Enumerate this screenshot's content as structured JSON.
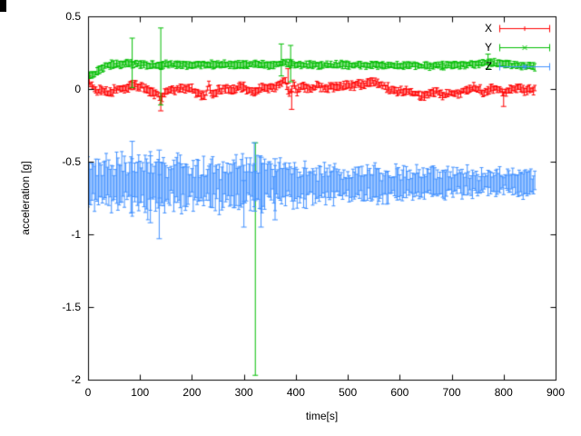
{
  "figure": {
    "background": "#ffffff",
    "border_color": "#000000",
    "text_color": "#000000"
  },
  "chart_data": {
    "type": "scatter",
    "style": "points-with-errorbars",
    "title": "",
    "xlabel": "time[s]",
    "ylabel": "acceleration [g]",
    "xlim": [
      0,
      900
    ],
    "ylim": [
      -2,
      0.5
    ],
    "xticks": [
      0,
      100,
      200,
      300,
      400,
      500,
      600,
      700,
      800,
      900
    ],
    "yticks": [
      -2,
      -1.5,
      -1,
      -0.5,
      0,
      0.5
    ],
    "grid": false,
    "legend_position": "top-right-inside",
    "noise_seed": 1234,
    "sample_step_s": 2.5,
    "t_end_s": 860,
    "series": [
      {
        "name": "X",
        "color": "#ff0000",
        "marker": "plus",
        "baseline_anchors": [
          [
            0,
            0.06
          ],
          [
            8,
            0.03
          ],
          [
            15,
            -0.02
          ],
          [
            25,
            -0.01
          ],
          [
            40,
            -0.03
          ],
          [
            55,
            0
          ],
          [
            70,
            0
          ],
          [
            85,
            0.03
          ],
          [
            100,
            0.02
          ],
          [
            115,
            -0.01
          ],
          [
            130,
            -0.03
          ],
          [
            140,
            -0.07
          ],
          [
            148,
            -0.02
          ],
          [
            160,
            -0.01
          ],
          [
            175,
            0
          ],
          [
            190,
            0.01
          ],
          [
            205,
            -0.01
          ],
          [
            215,
            -0.04
          ],
          [
            225,
            -0.05
          ],
          [
            232,
            0.03
          ],
          [
            240,
            -0.04
          ],
          [
            250,
            -0.01
          ],
          [
            265,
            0.01
          ],
          [
            280,
            -0.01
          ],
          [
            295,
            0.02
          ],
          [
            310,
            -0.02
          ],
          [
            325,
            -0.01
          ],
          [
            340,
            0.01
          ],
          [
            355,
            0.01
          ],
          [
            370,
            0.03
          ],
          [
            380,
            0.06
          ],
          [
            388,
            -0.05
          ],
          [
            395,
            0.05
          ],
          [
            402,
            -0.02
          ],
          [
            410,
            0.02
          ],
          [
            425,
            0
          ],
          [
            440,
            0.02
          ],
          [
            455,
            0.01
          ],
          [
            470,
            0.01
          ],
          [
            485,
            0.02
          ],
          [
            500,
            0.02
          ],
          [
            515,
            0.03
          ],
          [
            530,
            0.03
          ],
          [
            545,
            0.05
          ],
          [
            555,
            0.05
          ],
          [
            565,
            0.03
          ],
          [
            580,
            0
          ],
          [
            595,
            -0.02
          ],
          [
            610,
            -0.01
          ],
          [
            625,
            -0.03
          ],
          [
            640,
            -0.05
          ],
          [
            655,
            -0.04
          ],
          [
            670,
            -0.02
          ],
          [
            685,
            -0.04
          ],
          [
            700,
            -0.02
          ],
          [
            715,
            -0.03
          ],
          [
            730,
            0
          ],
          [
            745,
            0.01
          ],
          [
            760,
            -0.02
          ],
          [
            775,
            0
          ],
          [
            790,
            0.01
          ],
          [
            800,
            -0.03
          ],
          [
            810,
            0
          ],
          [
            825,
            0.01
          ],
          [
            840,
            -0.01
          ],
          [
            860,
            0
          ]
        ],
        "noise_anchors": [
          [
            0,
            0.013
          ],
          [
            860,
            0.013
          ]
        ],
        "errorbar_anchors": [
          [
            0,
            0.02
          ],
          [
            860,
            0.02
          ]
        ],
        "outliers": [
          [
            140,
            -0.08,
            0.07,
            0.05
          ],
          [
            385,
            0.09,
            0.05,
            0.05
          ],
          [
            392,
            -0.08,
            0.06,
            0.06
          ],
          [
            800,
            -0.06,
            0.06,
            0.04
          ]
        ]
      },
      {
        "name": "Y",
        "color": "#00bd00",
        "marker": "cross",
        "baseline_anchors": [
          [
            0,
            0.1
          ],
          [
            12,
            0.1
          ],
          [
            20,
            0.13
          ],
          [
            35,
            0.16
          ],
          [
            50,
            0.17
          ],
          [
            80,
            0.175
          ],
          [
            120,
            0.165
          ],
          [
            160,
            0.17
          ],
          [
            200,
            0.165
          ],
          [
            240,
            0.17
          ],
          [
            280,
            0.165
          ],
          [
            320,
            0.17
          ],
          [
            355,
            0.165
          ],
          [
            375,
            0.18
          ],
          [
            395,
            0.17
          ],
          [
            420,
            0.165
          ],
          [
            460,
            0.165
          ],
          [
            500,
            0.17
          ],
          [
            540,
            0.165
          ],
          [
            580,
            0.16
          ],
          [
            620,
            0.165
          ],
          [
            660,
            0.16
          ],
          [
            700,
            0.165
          ],
          [
            740,
            0.17
          ],
          [
            770,
            0.185
          ],
          [
            790,
            0.175
          ],
          [
            815,
            0.165
          ],
          [
            835,
            0.16
          ],
          [
            860,
            0.155
          ]
        ],
        "noise_anchors": [
          [
            0,
            0.008
          ],
          [
            860,
            0.008
          ]
        ],
        "errorbar_anchors": [
          [
            0,
            0.018
          ],
          [
            860,
            0.018
          ]
        ],
        "outliers": [
          [
            85,
            0.18,
            0.17,
            0.17
          ],
          [
            140,
            0.15,
            0.26,
            0.27
          ],
          [
            322,
            -1.3,
            0.67,
            0.93
          ],
          [
            372,
            0.19,
            0.1,
            0.12
          ],
          [
            390,
            0.17,
            0.12,
            0.13
          ],
          [
            770,
            0.19,
            0.05,
            0.05
          ]
        ]
      },
      {
        "name": "Z",
        "color": "#4090ff",
        "marker": "star",
        "baseline_anchors": [
          [
            0,
            -0.64
          ],
          [
            20,
            -0.66
          ],
          [
            50,
            -0.65
          ],
          [
            80,
            -0.64
          ],
          [
            110,
            -0.66
          ],
          [
            140,
            -0.67
          ],
          [
            170,
            -0.65
          ],
          [
            200,
            -0.66
          ],
          [
            230,
            -0.64
          ],
          [
            260,
            -0.66
          ],
          [
            290,
            -0.65
          ],
          [
            320,
            -0.64
          ],
          [
            350,
            -0.66
          ],
          [
            380,
            -0.65
          ],
          [
            420,
            -0.66
          ],
          [
            460,
            -0.65
          ],
          [
            500,
            -0.66
          ],
          [
            540,
            -0.65
          ],
          [
            580,
            -0.66
          ],
          [
            620,
            -0.65
          ],
          [
            660,
            -0.65
          ],
          [
            700,
            -0.64
          ],
          [
            740,
            -0.65
          ],
          [
            780,
            -0.64
          ],
          [
            820,
            -0.65
          ],
          [
            860,
            -0.65
          ]
        ],
        "noise_anchors": [
          [
            0,
            0.04
          ],
          [
            150,
            0.045
          ],
          [
            300,
            0.04
          ],
          [
            450,
            0.035
          ],
          [
            600,
            0.03
          ],
          [
            860,
            0.025
          ]
        ],
        "errorbar_anchors": [
          [
            0,
            0.13
          ],
          [
            100,
            0.15
          ],
          [
            160,
            0.13
          ],
          [
            250,
            0.12
          ],
          [
            330,
            0.13
          ],
          [
            400,
            0.1
          ],
          [
            500,
            0.09
          ],
          [
            600,
            0.08
          ],
          [
            700,
            0.075
          ],
          [
            860,
            0.06
          ]
        ],
        "outliers": [
          [
            85,
            -0.6,
            0.25,
            0.24
          ],
          [
            120,
            -0.68,
            0.24,
            0.22
          ],
          [
            137,
            -0.7,
            0.33,
            0.28
          ],
          [
            300,
            -0.75,
            0.2,
            0.12
          ],
          [
            320,
            -0.62,
            0.22,
            0.25
          ],
          [
            333,
            -0.67,
            0.28,
            0.2
          ],
          [
            360,
            -0.66,
            0.24,
            0.18
          ]
        ]
      }
    ]
  }
}
